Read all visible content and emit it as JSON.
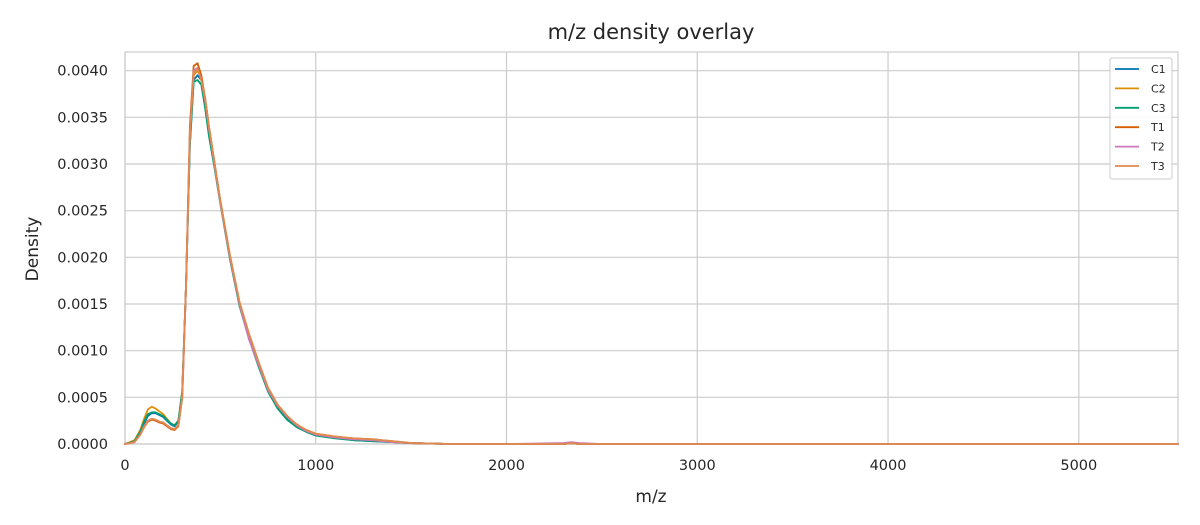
{
  "chart_data": {
    "type": "line",
    "title": "m/z density overlay",
    "xlabel": "m/z",
    "ylabel": "Density",
    "xlim": [
      0,
      5520
    ],
    "ylim": [
      0,
      0.0042
    ],
    "xticks": [
      0,
      1000,
      2000,
      3000,
      4000,
      5000
    ],
    "xtick_labels": [
      "0",
      "1000",
      "2000",
      "3000",
      "4000",
      "5000"
    ],
    "yticks": [
      0,
      0.0005,
      0.001,
      0.0015,
      0.002,
      0.0025,
      0.003,
      0.0035,
      0.004
    ],
    "ytick_labels": [
      "0.0000",
      "0.0005",
      "0.0010",
      "0.0015",
      "0.0020",
      "0.0025",
      "0.0030",
      "0.0035",
      "0.0040"
    ],
    "grid": true,
    "legend_position": "top-right",
    "x": [
      0,
      50,
      80,
      100,
      120,
      140,
      160,
      180,
      200,
      220,
      240,
      260,
      280,
      300,
      320,
      340,
      360,
      380,
      400,
      420,
      440,
      470,
      500,
      550,
      600,
      650,
      700,
      750,
      800,
      850,
      900,
      950,
      1000,
      1100,
      1200,
      1300,
      1400,
      1500,
      1700,
      2000,
      2300,
      2340,
      2380,
      2500,
      3000,
      4000,
      5000,
      5520
    ],
    "series": [
      {
        "name": "C1",
        "color": "#0173b2",
        "values": [
          0,
          3e-05,
          0.00012,
          0.00022,
          0.0003,
          0.00033,
          0.00033,
          0.00031,
          0.00029,
          0.00025,
          0.00021,
          0.00019,
          0.00024,
          0.00055,
          0.0017,
          0.0032,
          0.0039,
          0.00395,
          0.0039,
          0.0037,
          0.0034,
          0.003,
          0.0026,
          0.002,
          0.0015,
          0.00115,
          0.00085,
          0.00058,
          0.0004,
          0.00028,
          0.00019,
          0.00014,
          0.0001,
          7e-05,
          4e-05,
          3e-05,
          2e-05,
          1e-05,
          0,
          0,
          0,
          1e-05,
          0,
          0,
          0,
          0,
          0,
          0
        ]
      },
      {
        "name": "C2",
        "color": "#de8f05",
        "values": [
          0,
          4e-05,
          0.00015,
          0.00027,
          0.00037,
          0.0004,
          0.00038,
          0.00035,
          0.00032,
          0.00027,
          0.00022,
          0.0002,
          0.00025,
          0.00057,
          0.0017,
          0.0033,
          0.00395,
          0.004,
          0.00392,
          0.0037,
          0.0034,
          0.003,
          0.0026,
          0.00202,
          0.00152,
          0.00118,
          0.00088,
          0.0006,
          0.00042,
          0.0003,
          0.0002,
          0.00015,
          0.00011,
          8e-05,
          5e-05,
          4e-05,
          2e-05,
          1e-05,
          0,
          0,
          0,
          1e-05,
          0,
          0,
          0,
          0,
          0,
          0
        ]
      },
      {
        "name": "C3",
        "color": "#029e73",
        "values": [
          0,
          3e-05,
          0.00013,
          0.00024,
          0.00032,
          0.00034,
          0.00034,
          0.00032,
          0.0003,
          0.00026,
          0.00022,
          0.0002,
          0.00025,
          0.00056,
          0.0017,
          0.0032,
          0.00388,
          0.0039,
          0.00385,
          0.0036,
          0.0033,
          0.00295,
          0.00257,
          0.00198,
          0.00148,
          0.00113,
          0.00083,
          0.00056,
          0.00038,
          0.00026,
          0.00018,
          0.00013,
          9e-05,
          6e-05,
          4e-05,
          3e-05,
          2e-05,
          1e-05,
          0,
          0,
          0,
          1e-05,
          0,
          0,
          0,
          0,
          0,
          0
        ]
      },
      {
        "name": "T1",
        "color": "#d55e00",
        "values": [
          0,
          2e-05,
          0.0001,
          0.00018,
          0.00024,
          0.00026,
          0.00025,
          0.00023,
          0.00022,
          0.00019,
          0.00016,
          0.00015,
          0.00019,
          0.0005,
          0.0017,
          0.0034,
          0.00405,
          0.00408,
          0.00395,
          0.0037,
          0.0034,
          0.003,
          0.0026,
          0.00202,
          0.00152,
          0.00117,
          0.00087,
          0.0006,
          0.00042,
          0.0003,
          0.00021,
          0.00015,
          0.00011,
          8e-05,
          6e-05,
          5e-05,
          3e-05,
          1e-05,
          0,
          0,
          0,
          1e-05,
          0,
          0,
          0,
          0,
          0,
          0
        ]
      },
      {
        "name": "T2",
        "color": "#cc78bc",
        "values": [
          0,
          2e-05,
          0.0001,
          0.00019,
          0.00025,
          0.00027,
          0.00026,
          0.00024,
          0.00023,
          0.0002,
          0.00017,
          0.00016,
          0.0002,
          0.0005,
          0.0017,
          0.0033,
          0.004,
          0.00403,
          0.0039,
          0.00368,
          0.00338,
          0.00298,
          0.00258,
          0.002,
          0.0015,
          0.00112,
          0.00085,
          0.00058,
          0.00041,
          0.00029,
          0.0002,
          0.00014,
          0.0001,
          7e-05,
          5e-05,
          4e-05,
          2e-05,
          1e-05,
          0,
          0,
          1e-05,
          2e-05,
          1e-05,
          0,
          0,
          0,
          0,
          0
        ]
      },
      {
        "name": "T3",
        "color": "#e08a4f",
        "values": [
          0,
          2e-05,
          0.0001,
          0.00018,
          0.00025,
          0.00027,
          0.00026,
          0.00024,
          0.00023,
          0.0002,
          0.00017,
          0.00016,
          0.0002,
          0.0005,
          0.0017,
          0.0033,
          0.00398,
          0.00402,
          0.0039,
          0.0037,
          0.0034,
          0.003,
          0.0026,
          0.00202,
          0.00152,
          0.00118,
          0.00088,
          0.0006,
          0.00042,
          0.0003,
          0.00021,
          0.00015,
          0.00011,
          8e-05,
          6e-05,
          5e-05,
          3e-05,
          1e-05,
          0,
          0,
          0,
          1e-05,
          0,
          0,
          0,
          0,
          0,
          0
        ]
      }
    ]
  }
}
